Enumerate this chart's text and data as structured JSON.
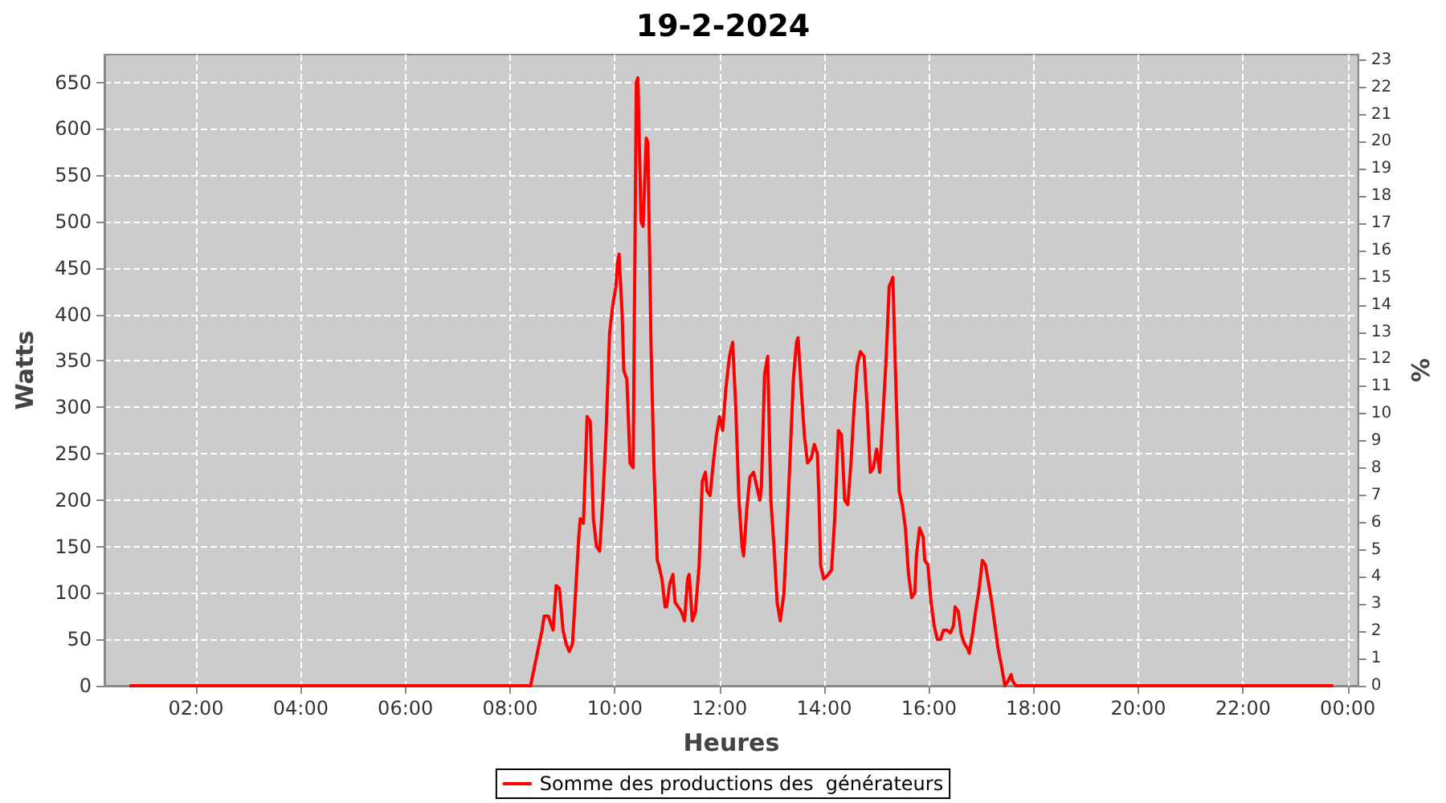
{
  "chart_data": {
    "type": "line",
    "title": "19-2-2024",
    "xlabel": "Heures",
    "ylabel": "Watts",
    "y2label": "%",
    "xlim": [
      0.25,
      24.2
    ],
    "xticks": [
      {
        "value": 2,
        "label": "02:00"
      },
      {
        "value": 4,
        "label": "04:00"
      },
      {
        "value": 6,
        "label": "06:00"
      },
      {
        "value": 8,
        "label": "08:00"
      },
      {
        "value": 10,
        "label": "10:00"
      },
      {
        "value": 12,
        "label": "12:00"
      },
      {
        "value": 14,
        "label": "14:00"
      },
      {
        "value": 16,
        "label": "16:00"
      },
      {
        "value": 18,
        "label": "18:00"
      },
      {
        "value": 20,
        "label": "20:00"
      },
      {
        "value": 22,
        "label": "22:00"
      },
      {
        "value": 24,
        "label": "00:00"
      }
    ],
    "ylim": [
      0,
      680
    ],
    "yticks": [
      0,
      50,
      100,
      150,
      200,
      250,
      300,
      350,
      400,
      450,
      500,
      550,
      600,
      650
    ],
    "y2lim": [
      0,
      23.2
    ],
    "y2ticks": [
      0,
      1,
      2,
      3,
      4,
      5,
      6,
      7,
      8,
      9,
      10,
      11,
      12,
      13,
      14,
      15,
      16,
      17,
      18,
      19,
      20,
      21,
      22,
      23
    ],
    "grid": true,
    "legend": "bottom",
    "line_style": "solid",
    "series": [
      {
        "name": "Somme des productions des  générateurs",
        "color": "#ff0000",
        "x": [
          0.75,
          8.39,
          8.61,
          8.65,
          8.73,
          8.82,
          8.88,
          8.94,
          9.01,
          9.07,
          9.13,
          9.19,
          9.25,
          9.31,
          9.34,
          9.4,
          9.47,
          9.53,
          9.59,
          9.65,
          9.71,
          9.77,
          9.83,
          9.9,
          9.96,
          10.02,
          10.05,
          10.08,
          10.14,
          10.17,
          10.23,
          10.29,
          10.35,
          10.41,
          10.44,
          10.5,
          10.54,
          10.6,
          10.63,
          10.66,
          10.69,
          10.75,
          10.81,
          10.84,
          10.9,
          10.96,
          10.99,
          11.05,
          11.11,
          11.15,
          11.21,
          11.27,
          11.33,
          11.39,
          11.42,
          11.48,
          11.54,
          11.61,
          11.67,
          11.73,
          11.76,
          11.82,
          11.88,
          11.94,
          12.0,
          12.06,
          12.12,
          12.19,
          12.25,
          12.31,
          12.37,
          12.43,
          12.46,
          12.52,
          12.58,
          12.65,
          12.71,
          12.77,
          12.8,
          12.86,
          12.92,
          12.98,
          13.04,
          13.1,
          13.16,
          13.23,
          13.29,
          13.35,
          13.41,
          13.47,
          13.5,
          13.56,
          13.62,
          13.68,
          13.75,
          13.81,
          13.87,
          13.9,
          13.93,
          13.99,
          14.08,
          14.14,
          14.2,
          14.27,
          14.33,
          14.39,
          14.45,
          14.51,
          14.57,
          14.63,
          14.69,
          14.76,
          14.82,
          14.88,
          14.94,
          15.0,
          15.06,
          15.12,
          15.18,
          15.24,
          15.31,
          15.34,
          15.37,
          15.43,
          15.49,
          15.55,
          15.61,
          15.67,
          15.73,
          15.76,
          15.82,
          15.89,
          15.92,
          15.98,
          16.04,
          16.1,
          16.16,
          16.22,
          16.28,
          16.34,
          16.41,
          16.47,
          16.5,
          16.56,
          16.62,
          16.68,
          16.74,
          16.77,
          16.83,
          16.89,
          16.96,
          17.02,
          17.08,
          17.14,
          17.2,
          17.26,
          17.32,
          17.39,
          17.45,
          17.51,
          17.57,
          17.6,
          17.66,
          23.7
        ],
        "values": [
          0,
          0,
          60,
          75,
          75,
          60,
          108,
          105,
          60,
          45,
          37,
          45,
          100,
          160,
          180,
          175,
          290,
          285,
          180,
          150,
          145,
          200,
          270,
          380,
          410,
          430,
          455,
          465,
          400,
          340,
          330,
          240,
          235,
          650,
          655,
          500,
          495,
          590,
          585,
          480,
          370,
          230,
          135,
          130,
          115,
          85,
          85,
          110,
          120,
          90,
          85,
          80,
          70,
          115,
          120,
          70,
          80,
          130,
          220,
          230,
          210,
          205,
          240,
          270,
          290,
          275,
          320,
          355,
          370,
          300,
          200,
          150,
          140,
          190,
          225,
          230,
          215,
          200,
          215,
          335,
          355,
          200,
          150,
          90,
          70,
          100,
          170,
          250,
          330,
          370,
          375,
          320,
          270,
          240,
          245,
          260,
          250,
          200,
          130,
          115,
          120,
          125,
          180,
          275,
          270,
          200,
          195,
          240,
          300,
          345,
          360,
          355,
          300,
          230,
          235,
          255,
          230,
          290,
          350,
          430,
          440,
          380,
          320,
          210,
          195,
          170,
          120,
          95,
          100,
          140,
          170,
          160,
          135,
          130,
          90,
          65,
          50,
          50,
          60,
          60,
          57,
          65,
          85,
          80,
          55,
          45,
          40,
          35,
          55,
          80,
          105,
          135,
          130,
          110,
          90,
          65,
          40,
          20,
          0,
          5,
          12,
          5,
          0,
          0
        ]
      }
    ]
  }
}
